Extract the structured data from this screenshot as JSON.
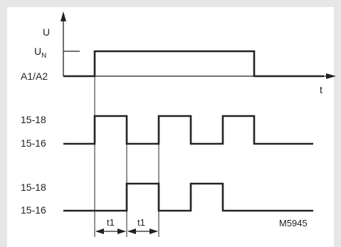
{
  "labels": {
    "u_axis": "U",
    "un_main": "U",
    "un_sub": "N",
    "supply": "A1/A2",
    "time_axis": "t",
    "contact1_high": "15-18",
    "contact1_low": "15-16",
    "contact2_high": "15-18",
    "contact2_low": "15-16",
    "t1_first": "t1",
    "t1_second": "t1",
    "figure_code": "M5945"
  }
}
